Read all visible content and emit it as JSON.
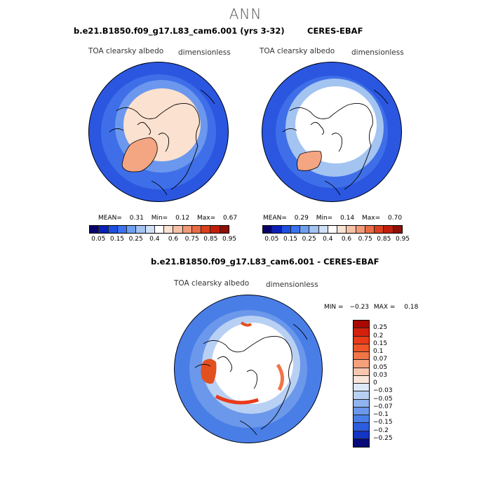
{
  "figure": {
    "title": "ANN"
  },
  "panels": [
    {
      "title": "b.e21.B1850.f09_g17.L83_cam6.001 (yrs 3-32)",
      "var_label": "TOA clearsky albedo",
      "units_label": "dimensionless",
      "stats": {
        "mean_label": "MEAN=",
        "mean": "0.31",
        "min_label": "Min=",
        "min": "0.12",
        "max_label": "Max=",
        "max": "0.67"
      }
    },
    {
      "title": "CERES-EBAF",
      "var_label": "TOA clearsky albedo",
      "units_label": "dimensionless",
      "stats": {
        "mean_label": "MEAN=",
        "mean": "0.29",
        "min_label": "Min=",
        "min": "0.14",
        "max_label": "Max=",
        "max": "0.70"
      }
    },
    {
      "title": "b.e21.B1850.f09_g17.L83_cam6.001 - CERES-EBAF",
      "var_label": "TOA clearsky albedo",
      "units_label": "dimensionless",
      "stats": {
        "min_label": "MIN =",
        "min": "−0.23",
        "max_label": "MAX =",
        "max": "0.18"
      }
    }
  ],
  "colorbar_abs": {
    "colors": [
      "#08006b",
      "#0b20b8",
      "#1d4fe3",
      "#3b73ef",
      "#6f9ff0",
      "#a3c3f1",
      "#cfe0f7",
      "#ffffff",
      "#fbe3d3",
      "#f7c1a6",
      "#f29a78",
      "#ea6b46",
      "#dc3f1d",
      "#c11e0a",
      "#8f0f06"
    ],
    "labels": [
      "0.05",
      "0.15",
      "0.25",
      "0.4",
      "0.6",
      "0.75",
      "0.85",
      "0.95"
    ]
  },
  "colorbar_diff": {
    "colors": [
      "#a80800",
      "#d4200c",
      "#ea3a18",
      "#f05528",
      "#f37446",
      "#f6a07c",
      "#f8c6ad",
      "#fbe4d8",
      "#dde9f8",
      "#b8d0f3",
      "#8fb4ee",
      "#6b98ea",
      "#4a7ee7",
      "#2d5ddf",
      "#1434c4",
      "#050a78"
    ],
    "labels": [
      "0.25",
      "0.2",
      "0.15",
      "0.1",
      "0.07",
      "0.05",
      "0.03",
      "0",
      "−0.03",
      "−0.05",
      "−0.07",
      "−0.1",
      "−0.15",
      "−0.2",
      "−0.25"
    ]
  },
  "map_colors": {
    "ocean_dark": "#2b57e0",
    "ocean_mid": "#3f6fe8",
    "ocean_light": "#6b98ee",
    "ice_pale": "#fbe1cf",
    "ice_white": "#ffffff",
    "greenland": "#f4a582",
    "diff_pos": "#e2501f",
    "diff_light": "#b9d0f4"
  }
}
